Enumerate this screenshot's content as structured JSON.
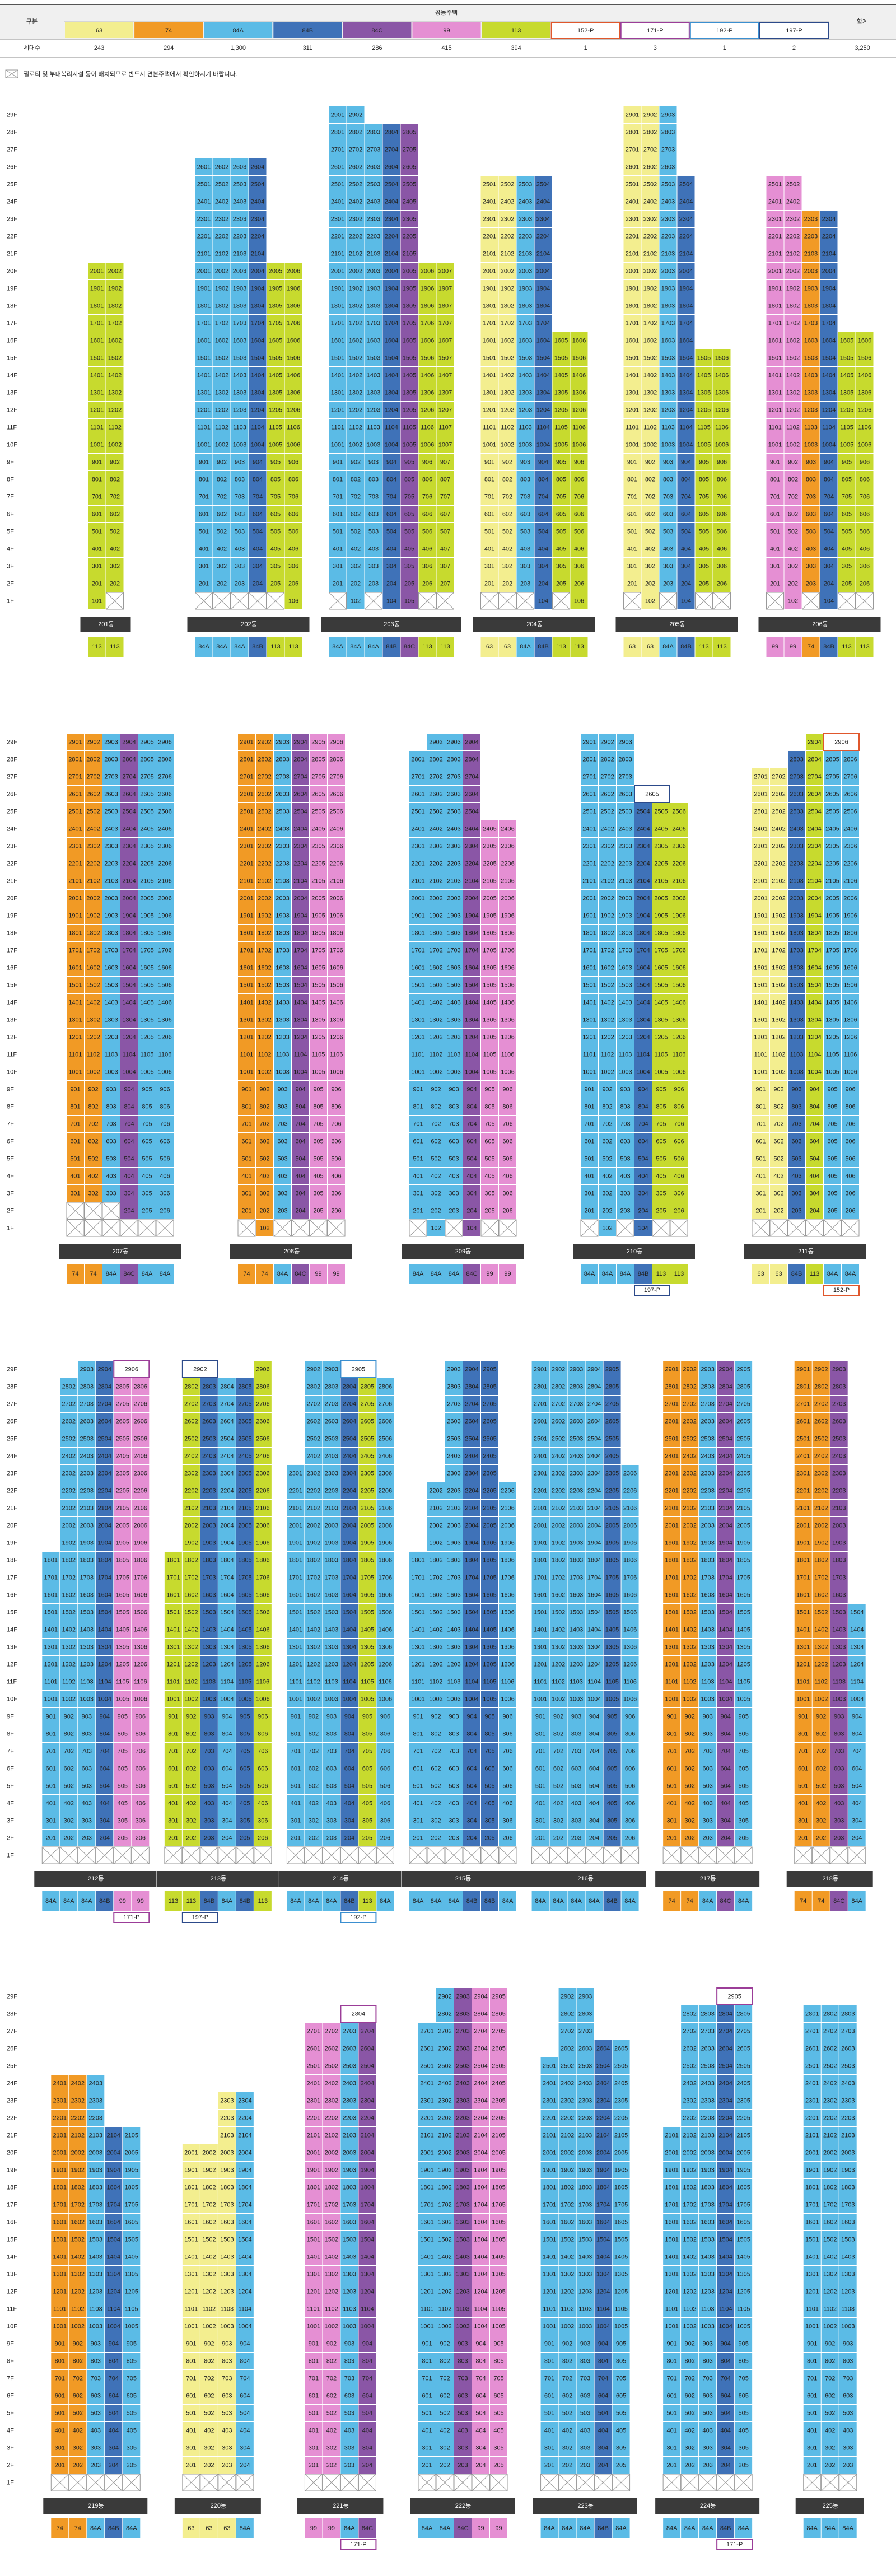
{
  "header": {
    "col_label": "구분",
    "group_label": "공동주택",
    "total_label": "합계",
    "row_label": "세대수",
    "total": {
      "value": 3250,
      "label": "3,250"
    }
  },
  "types": [
    {
      "name": "63",
      "color": "#f3ee8f",
      "count": 243
    },
    {
      "name": "74",
      "color": "#f19a25",
      "count": 294
    },
    {
      "name": "84A",
      "color": "#5bbbe6",
      "count": {
        "value": 1300,
        "label": "1,300"
      }
    },
    {
      "name": "84B",
      "color": "#3f72b8",
      "count": 311
    },
    {
      "name": "84C",
      "color": "#8a56a6",
      "count": 286
    },
    {
      "name": "99",
      "color": "#e58fd3",
      "count": 415
    },
    {
      "name": "113",
      "color": "#c7da2e",
      "count": 394
    },
    {
      "name": "152-P",
      "color": "#e0572c",
      "outline": true,
      "count": 1
    },
    {
      "name": "171-P",
      "color": "#9b3d98",
      "outline": true,
      "count": 3
    },
    {
      "name": "192-P",
      "color": "#3b8fd0",
      "outline": true,
      "count": 1
    },
    {
      "name": "197-P",
      "color": "#2c4a8a",
      "outline": true,
      "count": 2
    }
  ],
  "note": "필로티 및 부대복리시설 등이 배치되므로 반드시 견본주택에서 확인하시기 바랍니다.",
  "floors": [
    "29F",
    "28F",
    "27F",
    "26F",
    "25F",
    "24F",
    "23F",
    "22F",
    "21F",
    "20F",
    "19F",
    "18F",
    "17F",
    "16F",
    "15F",
    "14F",
    "13F",
    "12F",
    "11F",
    "10F",
    "9F",
    "8F",
    "7F",
    "6F",
    "5F",
    "4F",
    "3F",
    "2F",
    "1F"
  ],
  "sections": [
    [
      {
        "name": "201동",
        "columns": [
          [
            "113",
            20,
            1
          ],
          [
            "113",
            20,
            2
          ]
        ]
      },
      {
        "name": "202동",
        "columns": [
          [
            "84A",
            26,
            2
          ],
          [
            "84A",
            26,
            2
          ],
          [
            "84A",
            26,
            2
          ],
          [
            "84B",
            26,
            2
          ],
          [
            "113",
            20,
            2
          ],
          [
            "113",
            20,
            1
          ]
        ]
      },
      {
        "name": "203동",
        "columns": [
          [
            "84A",
            29,
            2
          ],
          [
            "84A",
            29,
            1
          ],
          [
            "84A",
            28,
            2
          ],
          [
            "84B",
            28,
            1
          ],
          [
            "84C",
            28,
            1
          ],
          [
            "113",
            20,
            2
          ],
          [
            "113",
            20,
            2
          ]
        ]
      },
      {
        "name": "204동",
        "columns": [
          [
            "63",
            25,
            2
          ],
          [
            "63",
            25,
            2
          ],
          [
            "84A",
            25,
            2
          ],
          [
            "84B",
            25,
            1
          ],
          [
            "113",
            16,
            2
          ],
          [
            "113",
            16,
            1
          ]
        ]
      },
      {
        "name": "205동",
        "columns": [
          [
            "63",
            29,
            2
          ],
          [
            "63",
            29,
            1
          ],
          [
            "84A",
            29,
            2
          ],
          [
            "84B",
            25,
            1
          ],
          [
            "113",
            15,
            2
          ],
          [
            "113",
            15,
            2
          ]
        ]
      },
      {
        "name": "206동",
        "columns": [
          [
            "99",
            25,
            2
          ],
          [
            "99",
            25,
            1
          ],
          [
            "74",
            23,
            2
          ],
          [
            "84B",
            23,
            1
          ],
          [
            "113",
            16,
            2
          ],
          [
            "113",
            16,
            2
          ]
        ]
      }
    ],
    [
      {
        "name": "207동",
        "columns": [
          [
            "74",
            29,
            3
          ],
          [
            "74",
            29,
            3
          ],
          [
            "84A",
            29,
            3
          ],
          [
            "84C",
            29,
            2
          ],
          [
            "84A",
            29,
            2
          ],
          [
            "84A",
            29,
            2
          ]
        ]
      },
      {
        "name": "208동",
        "columns": [
          [
            "74",
            29,
            2
          ],
          [
            "74",
            29,
            1
          ],
          [
            "84A",
            29,
            2
          ],
          [
            "84C",
            29,
            2
          ],
          [
            "99",
            29,
            2
          ],
          [
            "99",
            29,
            2
          ]
        ]
      },
      {
        "name": "209동",
        "columns": [
          [
            "84A",
            28,
            2
          ],
          [
            "84A",
            29,
            1
          ],
          [
            "84A",
            29,
            2
          ],
          [
            "84C",
            29,
            1
          ],
          [
            "99",
            24,
            2
          ],
          [
            "99",
            24,
            2
          ]
        ]
      },
      {
        "name": "210동",
        "columns": [
          [
            "84A",
            29,
            2
          ],
          [
            "84A",
            29,
            1
          ],
          [
            "84A",
            29,
            2
          ],
          [
            "84B",
            25,
            1
          ],
          [
            "113",
            25,
            2
          ],
          [
            "113",
            25,
            2
          ]
        ],
        "special": {
          "floor": 26,
          "from": 3,
          "to": 4,
          "label": "2605",
          "type": "197-P"
        }
      },
      {
        "name": "211동",
        "columns": [
          [
            "63",
            27,
            2
          ],
          [
            "63",
            27,
            2
          ],
          [
            "84B",
            28,
            2
          ],
          [
            "113",
            29,
            2
          ],
          [
            "84A",
            28,
            2
          ],
          [
            "84A",
            28,
            2
          ]
        ],
        "special": {
          "floor": 29,
          "from": 4,
          "to": 5,
          "label": "2906",
          "type": "152-P"
        }
      }
    ],
    [
      {
        "name": "212동",
        "columns": [
          [
            "84A",
            18,
            2
          ],
          [
            "84A",
            28,
            2
          ],
          [
            "84A",
            29,
            2
          ],
          [
            "84B",
            29,
            2
          ],
          [
            "99",
            28,
            2
          ],
          [
            "99",
            28,
            2
          ]
        ],
        "special": {
          "floor": 29,
          "from": 4,
          "to": 5,
          "label": "2906",
          "type": "171-P"
        }
      },
      {
        "name": "213동",
        "columns": [
          [
            "113",
            18,
            2
          ],
          [
            "113",
            28,
            2
          ],
          [
            "84B",
            28,
            2
          ],
          [
            "84A",
            28,
            2
          ],
          [
            "84B",
            28,
            2
          ],
          [
            "113",
            29,
            2
          ]
        ],
        "special": {
          "floor": 29,
          "from": 1,
          "to": 2,
          "label": "2902",
          "type": "197-P"
        }
      },
      {
        "name": "214동",
        "columns": [
          [
            "84A",
            23,
            2
          ],
          [
            "84A",
            29,
            2
          ],
          [
            "84A",
            29,
            2
          ],
          [
            "84B",
            28,
            2
          ],
          [
            "113",
            28,
            2
          ],
          [
            "84A",
            28,
            2
          ]
        ],
        "special": {
          "floor": 29,
          "from": 3,
          "to": 4,
          "label": "2905",
          "type": "192-P"
        }
      },
      {
        "name": "215동",
        "columns": [
          [
            "84A",
            18,
            2
          ],
          [
            "84A",
            22,
            2
          ],
          [
            "84A",
            29,
            2
          ],
          [
            "84B",
            29,
            2
          ],
          [
            "84B",
            29,
            2
          ],
          [
            "84A",
            22,
            2
          ]
        ]
      },
      {
        "name": "216동",
        "columns": [
          [
            "84A",
            29,
            2
          ],
          [
            "84A",
            29,
            2
          ],
          [
            "84A",
            29,
            2
          ],
          [
            "84A",
            29,
            2
          ],
          [
            "84B",
            29,
            2
          ],
          [
            "84A",
            23,
            2
          ]
        ]
      },
      {
        "name": "217동",
        "columns": [
          [
            "74",
            29,
            2
          ],
          [
            "74",
            29,
            2
          ],
          [
            "84A",
            29,
            2
          ],
          [
            "84C",
            29,
            2
          ],
          [
            "84A",
            29,
            2
          ]
        ]
      },
      {
        "name": "218동",
        "columns": [
          [
            "74",
            29,
            2
          ],
          [
            "74",
            29,
            2
          ],
          [
            "84C",
            29,
            2
          ],
          [
            "84A",
            15,
            2
          ]
        ]
      }
    ],
    [
      {
        "name": "219동",
        "columns": [
          [
            "74",
            24,
            2
          ],
          [
            "74",
            24,
            2
          ],
          [
            "84A",
            24,
            2
          ],
          [
            "84B",
            21,
            2
          ],
          [
            "84A",
            21,
            2
          ]
        ]
      },
      {
        "name": "220동",
        "columns": [
          [
            "63",
            20,
            2
          ],
          [
            "63",
            20,
            2
          ],
          [
            "63",
            23,
            2
          ],
          [
            "84A",
            23,
            2
          ]
        ]
      },
      {
        "name": "221동",
        "columns": [
          [
            "99",
            27,
            2
          ],
          [
            "99",
            27,
            2
          ],
          [
            "84A",
            27,
            2
          ],
          [
            "84C",
            27,
            2
          ]
        ],
        "special": {
          "floor": 28,
          "from": 2,
          "to": 3,
          "label": "2804",
          "type": "171-P"
        }
      },
      {
        "name": "222동",
        "columns": [
          [
            "84A",
            27,
            2
          ],
          [
            "84A",
            29,
            2
          ],
          [
            "84C",
            29,
            2
          ],
          [
            "99",
            29,
            2
          ],
          [
            "99",
            29,
            2
          ]
        ]
      },
      {
        "name": "223동",
        "columns": [
          [
            "84A",
            25,
            2
          ],
          [
            "84A",
            29,
            2
          ],
          [
            "84A",
            29,
            2
          ],
          [
            "84B",
            26,
            2
          ],
          [
            "84A",
            26,
            2
          ]
        ]
      },
      {
        "name": "224동",
        "columns": [
          [
            "84A",
            21,
            2
          ],
          [
            "84A",
            28,
            2
          ],
          [
            "84A",
            28,
            2
          ],
          [
            "84B",
            28,
            2
          ],
          [
            "84A",
            28,
            2
          ]
        ],
        "special": {
          "floor": 29,
          "from": 3,
          "to": 4,
          "label": "2905",
          "type": "171-P"
        }
      },
      {
        "name": "225동",
        "columns": [
          [
            "84A",
            28,
            2
          ],
          [
            "84A",
            28,
            2
          ],
          [
            "84A",
            28,
            2
          ]
        ]
      }
    ]
  ]
}
